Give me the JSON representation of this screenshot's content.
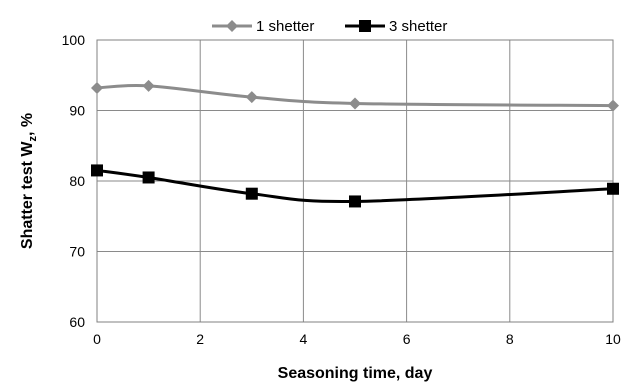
{
  "chart_data": {
    "type": "line",
    "x": [
      0,
      1,
      3,
      5,
      10
    ],
    "series": [
      {
        "name": "1 shetter",
        "values": [
          93.2,
          93.5,
          91.9,
          91.0,
          90.7
        ],
        "color": "#8c8c8c",
        "marker": "diamond"
      },
      {
        "name": "3 shetter",
        "values": [
          81.5,
          80.5,
          78.2,
          77.1,
          78.9
        ],
        "color": "#000000",
        "marker": "square"
      }
    ],
    "xlabel": "Seasoning time, day",
    "ylabel_main": "Shatter test W",
    "ylabel_sub": "z",
    "ylabel_unit": ", %",
    "xlim": [
      0,
      10
    ],
    "ylim": [
      60,
      100
    ],
    "xticks": [
      "0",
      "2",
      "4",
      "6",
      "8",
      "10"
    ],
    "yticks": [
      "60",
      "70",
      "80",
      "90",
      "100"
    ],
    "grid": true,
    "legend_position": "top"
  }
}
